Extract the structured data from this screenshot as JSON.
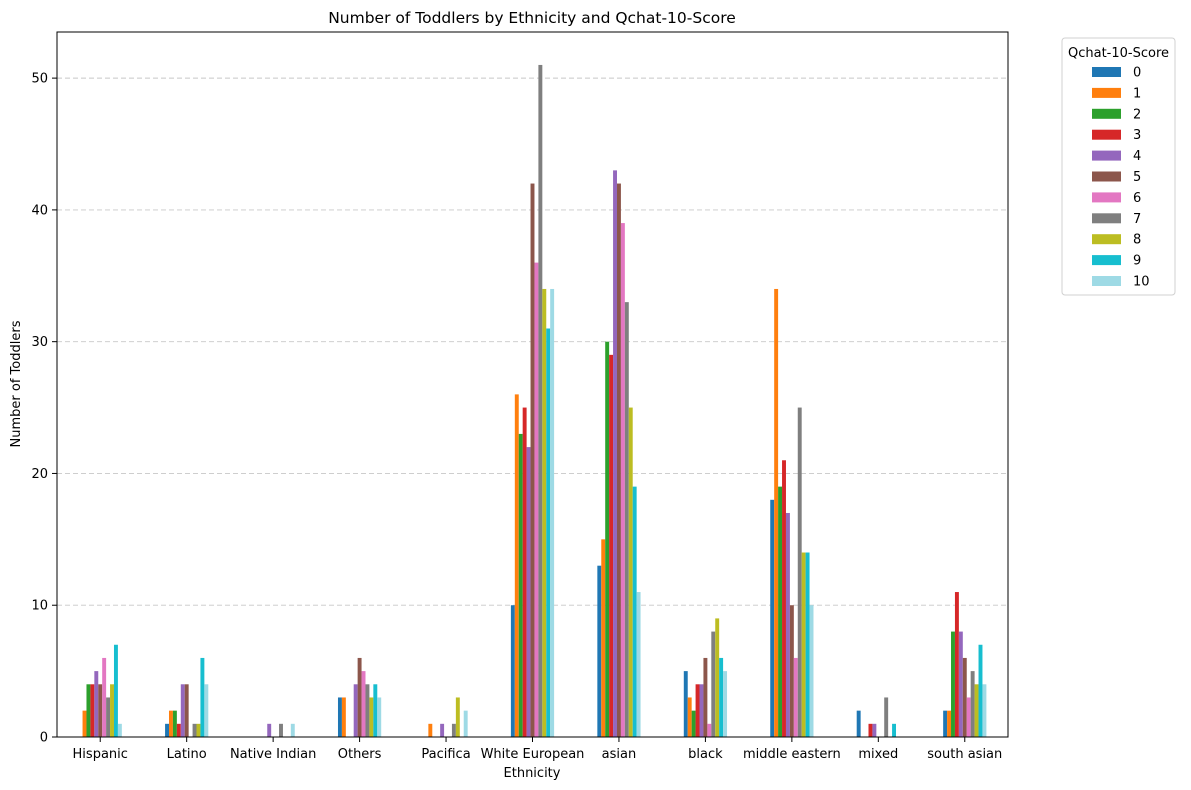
{
  "chart_data": {
    "type": "bar",
    "title": "Number of Toddlers by Ethnicity and Qchat-10-Score",
    "xlabel": "Ethnicity",
    "ylabel": "Number of Toddlers",
    "ylim": [
      0,
      53.5
    ],
    "yticks": [
      "0",
      "10",
      "20",
      "30",
      "40",
      "50"
    ],
    "grid": "y-dashed",
    "legend_title": "Qchat-10-Score",
    "legend_position": "outside-top-right",
    "categories": [
      "Hispanic",
      "Latino",
      "Native Indian",
      "Others",
      "Pacifica",
      "White European",
      "asian",
      "black",
      "middle eastern",
      "mixed",
      "south asian"
    ],
    "series": [
      {
        "name": "0",
        "color": "#1f77b4",
        "values": [
          0,
          1,
          0,
          3,
          0,
          10,
          13,
          5,
          18,
          2,
          2
        ]
      },
      {
        "name": "1",
        "color": "#ff7f0e",
        "values": [
          2,
          2,
          0,
          3,
          1,
          26,
          15,
          3,
          34,
          0,
          2
        ]
      },
      {
        "name": "2",
        "color": "#2ca02c",
        "values": [
          4,
          2,
          0,
          0,
          0,
          23,
          30,
          2,
          19,
          0,
          8
        ]
      },
      {
        "name": "3",
        "color": "#d62728",
        "values": [
          4,
          1,
          0,
          0,
          0,
          25,
          29,
          4,
          21,
          1,
          11
        ]
      },
      {
        "name": "4",
        "color": "#9467bd",
        "values": [
          5,
          4,
          1,
          4,
          1,
          22,
          43,
          4,
          17,
          1,
          8
        ]
      },
      {
        "name": "5",
        "color": "#8c564b",
        "values": [
          4,
          4,
          0,
          6,
          0,
          42,
          42,
          6,
          10,
          0,
          6
        ]
      },
      {
        "name": "6",
        "color": "#e377c2",
        "values": [
          6,
          0,
          0,
          5,
          0,
          36,
          39,
          1,
          6,
          0,
          3
        ]
      },
      {
        "name": "7",
        "color": "#7f7f7f",
        "values": [
          3,
          1,
          1,
          4,
          1,
          51,
          33,
          8,
          25,
          3,
          5
        ]
      },
      {
        "name": "8",
        "color": "#bcbd22",
        "values": [
          4,
          1,
          0,
          3,
          3,
          34,
          25,
          9,
          14,
          0,
          4
        ]
      },
      {
        "name": "9",
        "color": "#17becf",
        "values": [
          7,
          6,
          0,
          4,
          0,
          31,
          19,
          6,
          14,
          1,
          7
        ]
      },
      {
        "name": "10",
        "color": "#9edae5",
        "values": [
          1,
          4,
          1,
          3,
          2,
          34,
          11,
          5,
          10,
          0,
          4
        ]
      }
    ]
  }
}
